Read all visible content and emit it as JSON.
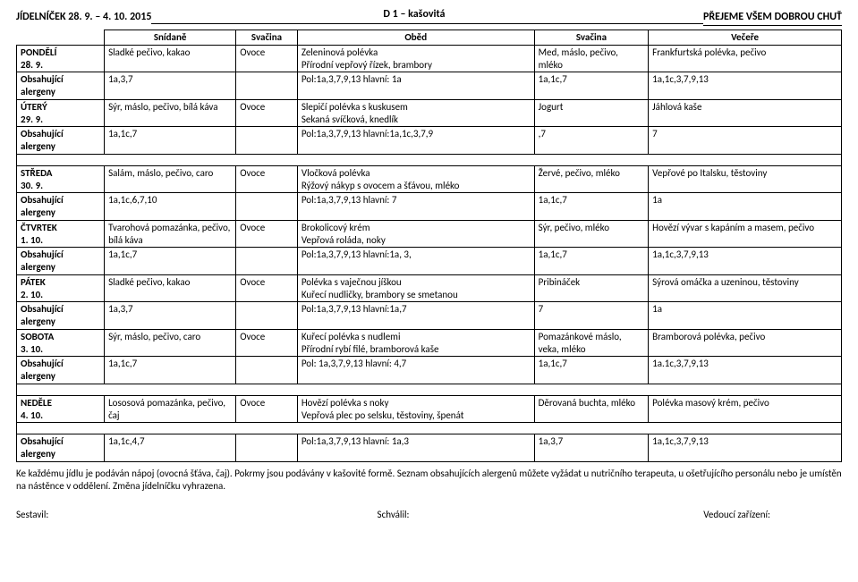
{
  "header": {
    "left": "JÍDELNÍČEK         28. 9. – 4. 10. 2015",
    "mid": "D 1 – kašovitá",
    "right": "PŘEJEME VŠEM DOBROU CHUŤ"
  },
  "columns": [
    "",
    "Snídaně",
    "Svačina",
    "Oběd",
    "Svačina",
    "Večeře"
  ],
  "days": [
    {
      "day": "PONDĚLÍ\n28. 9.",
      "snidan": "Sladké pečivo, kakao",
      "sv1": "Ovoce",
      "obed": "Zeleninová polévka\nPřírodní vepřový řízek, brambory",
      "sv2": "Med, máslo, pečivo, mléko",
      "vecere": "Frankfurtská polévka, pečivo",
      "allerg": [
        "Obsahující alergeny",
        "1a,3,7",
        "",
        "Pol:1a,3,7,9,13 hlavní: 1a",
        "1a,1c,7",
        "1a,1c,3,7,9,13"
      ]
    },
    {
      "day": "ÚTERÝ\n29. 9.",
      "snidan": "Sýr, máslo, pečivo, bílá káva",
      "sv1": "Ovoce",
      "obed": "Slepičí polévka s kuskusem\nSekaná svíčková, knedlík",
      "sv2": "Jogurt",
      "vecere": "Jáhlová kaše",
      "allerg": [
        "Obsahující alergeny",
        "1a,1c,7",
        "",
        "Pol:1a,3,7,9,13 hlavní:1a,1c,3,7,9",
        ",7",
        "7"
      ]
    },
    {
      "day": "STŘEDA\n30. 9.",
      "snidan": "Salám, máslo, pečivo, caro",
      "sv1": "Ovoce",
      "obed": "Vločková polévka\nRýžový nákyp s ovocem a šťávou, mléko",
      "sv2": "Žervé, pečivo, mléko",
      "vecere": "Vepřové po Italsku, těstoviny",
      "allerg": [
        "Obsahující alergeny",
        "1a,1c,6,7,10",
        "",
        "Pol:1a,3,7,9,13 hlavní: 7",
        "1a,1c,7",
        "1a"
      ]
    },
    {
      "day": "ČTVRTEK\n1. 10.",
      "snidan": "Tvarohová pomazánka, pečivo, bílá káva",
      "sv1": "Ovoce",
      "obed": "Brokolicový krém\nVepřová roláda, noky",
      "sv2": "Sýr, pečivo, mléko",
      "vecere": "Hovězí vývar s kapáním a masem, pečivo",
      "allerg": [
        "Obsahující alergeny",
        "1a,1c,7",
        "",
        "Pol:1a,3,7,9,13 hlavní:1a, 3,",
        "1a,1c,7",
        "1a,1c,3,7,9,13"
      ]
    },
    {
      "day": "PÁTEK\n2. 10.",
      "snidan": "Sladké pečivo, kakao",
      "sv1": "Ovoce",
      "obed": "Polévka s vaječnou jíškou\nKuřecí nudličky, brambory se smetanou",
      "sv2": "Pribináček",
      "vecere": "Sýrová omáčka a uzeninou, těstoviny",
      "allerg": [
        "Obsahující alergeny",
        "1a,3,7",
        "",
        "Pol:1a,3,7,9,13 hlavní:1a,7",
        "7",
        "1a"
      ]
    },
    {
      "day": "SOBOTA\n3. 10.",
      "snidan": "Sýr, máslo, pečivo, caro",
      "sv1": "Ovoce",
      "obed": "Kuřecí polévka s nudlemi\nPřírodní rybí filé, bramborová kaše",
      "sv2": "Pomazánkové máslo, veka, mléko",
      "vecere": "Bramborová polévka, pečivo",
      "allerg": [
        "Obsahující alergeny",
        "1a,1c,7",
        "",
        "Pol: 1a,3,7,9,13 hlavní: 4,7",
        "1a,1c,7",
        "1a.1c,3,7,9,13"
      ]
    },
    {
      "day": "NEDĚLE\n4. 10.",
      "snidan": "Lososová pomazánka, pečivo, čaj",
      "sv1": "Ovoce",
      "obed": "Hovězí polévka s noky\nVepřová plec po selsku, těstoviny, špenát",
      "sv2": "Děrovaná buchta, mléko",
      "vecere": "Polévka masový krém, pečivo",
      "allerg": [
        "Obsahující alergeny",
        "1a,1c,4,7",
        "",
        "Pol:1a,3,7,9,13 hlavní: 1a,3",
        "1a,3,7",
        "1a,1c,3,7,9,13"
      ]
    }
  ],
  "footer": "Ke každému jídlu je podáván nápoj (ovocná šťáva, čaj). Pokrmy jsou podávány v kašovité formě. Seznam obsahujících alergenů můžete vyžádat u nutričního terapeuta, u ošetřujícího personálu nebo je umístěn na nástěnce v oddělení. Změna jídelníčku vyhrazena.",
  "signatures": {
    "left": "Sestavil:",
    "mid": "Schválil:",
    "right": "Vedoucí zařízení:"
  }
}
